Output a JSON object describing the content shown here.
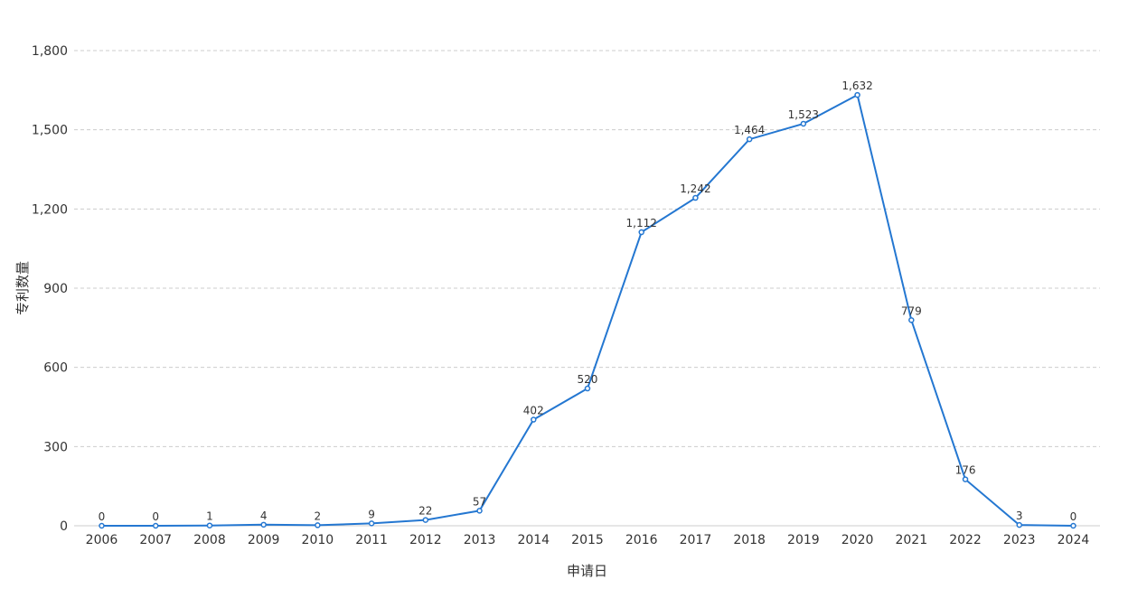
{
  "chart_data": {
    "type": "line",
    "title": "",
    "xlabel": "申请日",
    "ylabel": "专利数量",
    "categories": [
      "2006",
      "2007",
      "2008",
      "2009",
      "2010",
      "2011",
      "2012",
      "2013",
      "2014",
      "2015",
      "2016",
      "2017",
      "2018",
      "2019",
      "2020",
      "2021",
      "2022",
      "2023",
      "2024"
    ],
    "series": [
      {
        "values": [
          0,
          0,
          1,
          4,
          2,
          9,
          22,
          57,
          402,
          520,
          1112,
          1242,
          1464,
          1523,
          1632,
          779,
          176,
          3,
          0
        ]
      }
    ],
    "data_labels": [
      "0",
      "0",
      "1",
      "4",
      "2",
      "9",
      "22",
      "57",
      "402",
      "520",
      "1,112",
      "1,242",
      "1,464",
      "1,523",
      "1,632",
      "779",
      "176",
      "3",
      "0"
    ],
    "ylim": [
      0,
      1800
    ],
    "yticks": [
      0,
      300,
      600,
      900,
      1200,
      1500,
      1800
    ],
    "ytick_labels": [
      "0",
      "300",
      "600",
      "900",
      "1,200",
      "1,500",
      "1,800"
    ],
    "grid": true,
    "colors": {
      "line": "#2477d1",
      "grid": "#cccccc",
      "axis": "#cccccc",
      "text": "#333333"
    }
  }
}
